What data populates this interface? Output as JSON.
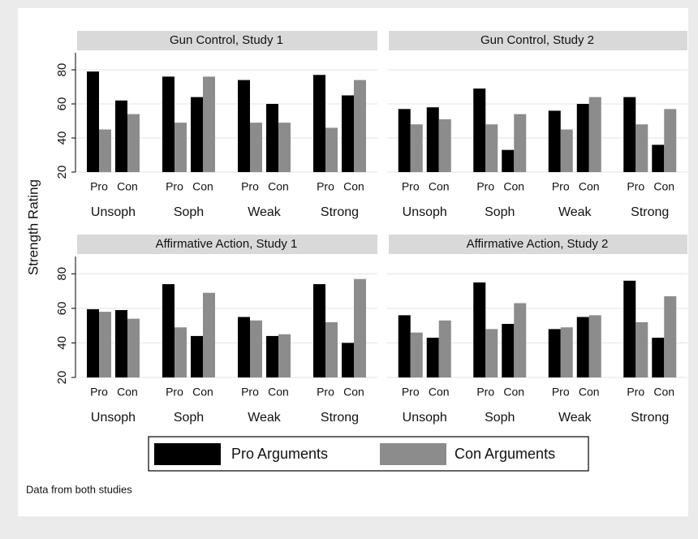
{
  "y_label": "Strength Rating",
  "note": "Data from both studies",
  "chart_data": [
    {
      "type": "bar",
      "title": "Gun Control, Study 1",
      "categories": [
        "Pro",
        "Con",
        "Pro",
        "Con",
        "Pro",
        "Con",
        "Pro",
        "Con"
      ],
      "groups": [
        "Unsoph",
        "Soph",
        "Weak",
        "Strong"
      ],
      "series": [
        {
          "name": "Pro Arguments",
          "color": "#000000",
          "values": [
            79,
            62,
            76,
            64,
            74,
            60,
            77,
            65
          ]
        },
        {
          "name": "Con Arguments",
          "color": "#8c8c8c",
          "values": [
            45,
            54,
            49,
            76,
            49,
            49,
            46,
            74
          ]
        }
      ],
      "ylim": [
        20,
        90
      ],
      "yticks": [
        20,
        40,
        60,
        80
      ],
      "grid": true
    },
    {
      "type": "bar",
      "title": "Gun Control, Study 2",
      "categories": [
        "Pro",
        "Con",
        "Pro",
        "Con",
        "Pro",
        "Con",
        "Pro",
        "Con"
      ],
      "groups": [
        "Unsoph",
        "Soph",
        "Weak",
        "Strong"
      ],
      "series": [
        {
          "name": "Pro Arguments",
          "color": "#000000",
          "values": [
            57,
            58,
            69,
            33,
            56,
            60,
            64,
            36
          ]
        },
        {
          "name": "Con Arguments",
          "color": "#8c8c8c",
          "values": [
            48,
            51,
            48,
            54,
            45,
            64,
            48,
            57
          ]
        }
      ],
      "ylim": [
        20,
        90
      ],
      "yticks": [
        20,
        40,
        60,
        80
      ],
      "grid": true
    },
    {
      "type": "bar",
      "title": "Affirmative Action, Study 1",
      "categories": [
        "Pro",
        "Con",
        "Pro",
        "Con",
        "Pro",
        "Con",
        "Pro",
        "Con"
      ],
      "groups": [
        "Unsoph",
        "Soph",
        "Weak",
        "Strong"
      ],
      "series": [
        {
          "name": "Pro Arguments",
          "color": "#000000",
          "values": [
            59.5,
            59,
            74,
            44,
            55,
            44,
            74,
            40
          ]
        },
        {
          "name": "Con Arguments",
          "color": "#8c8c8c",
          "values": [
            58,
            54,
            49,
            69,
            53,
            45,
            52,
            77
          ]
        }
      ],
      "ylim": [
        20,
        90
      ],
      "yticks": [
        20,
        40,
        60,
        80
      ],
      "grid": true
    },
    {
      "type": "bar",
      "title": "Affirmative Action, Study 2",
      "categories": [
        "Pro",
        "Con",
        "Pro",
        "Con",
        "Pro",
        "Con",
        "Pro",
        "Con"
      ],
      "groups": [
        "Unsoph",
        "Soph",
        "Weak",
        "Strong"
      ],
      "series": [
        {
          "name": "Pro Arguments",
          "color": "#000000",
          "values": [
            56,
            43,
            75,
            51,
            48,
            55,
            76,
            43
          ]
        },
        {
          "name": "Con Arguments",
          "color": "#8c8c8c",
          "values": [
            46,
            53,
            48,
            63,
            49,
            56,
            52,
            67
          ]
        }
      ],
      "ylim": [
        20,
        90
      ],
      "yticks": [
        20,
        40,
        60,
        80
      ],
      "grid": true
    }
  ]
}
